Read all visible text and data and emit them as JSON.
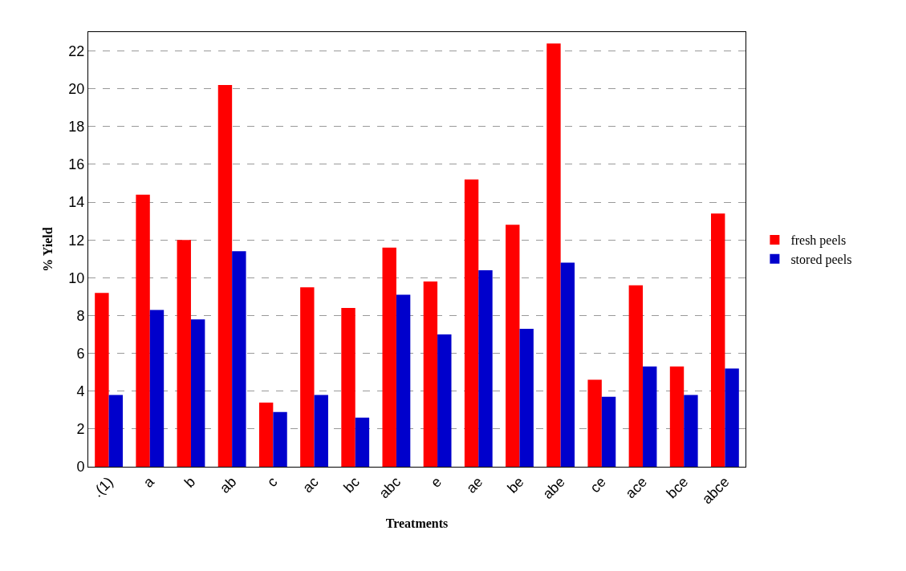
{
  "chart_data": {
    "type": "bar",
    "xlabel": "Treatments",
    "ylabel": "% Yield",
    "categories": [
      ".(1)",
      "a",
      "b",
      "ab",
      "c",
      "ac",
      "bc",
      "abc",
      "e",
      "ae",
      "be",
      "abe",
      "ce",
      "ace",
      "bce",
      "abce"
    ],
    "series": [
      {
        "name": "fresh peels",
        "color": "#ff0000",
        "values": [
          9.2,
          14.4,
          12.0,
          20.2,
          3.4,
          9.5,
          8.4,
          11.6,
          9.8,
          15.2,
          12.8,
          22.4,
          4.6,
          9.6,
          5.3,
          13.4
        ]
      },
      {
        "name": "stored peels",
        "color": "#0000cc",
        "values": [
          3.8,
          8.3,
          7.8,
          11.4,
          2.9,
          3.8,
          2.6,
          9.1,
          7.0,
          10.4,
          7.3,
          10.8,
          3.7,
          5.3,
          3.8,
          5.2
        ]
      }
    ],
    "ylim": [
      0,
      23
    ],
    "yticks": [
      0,
      2,
      4,
      6,
      8,
      10,
      12,
      14,
      16,
      18,
      20,
      22
    ],
    "grid": "y",
    "legend": "right"
  }
}
